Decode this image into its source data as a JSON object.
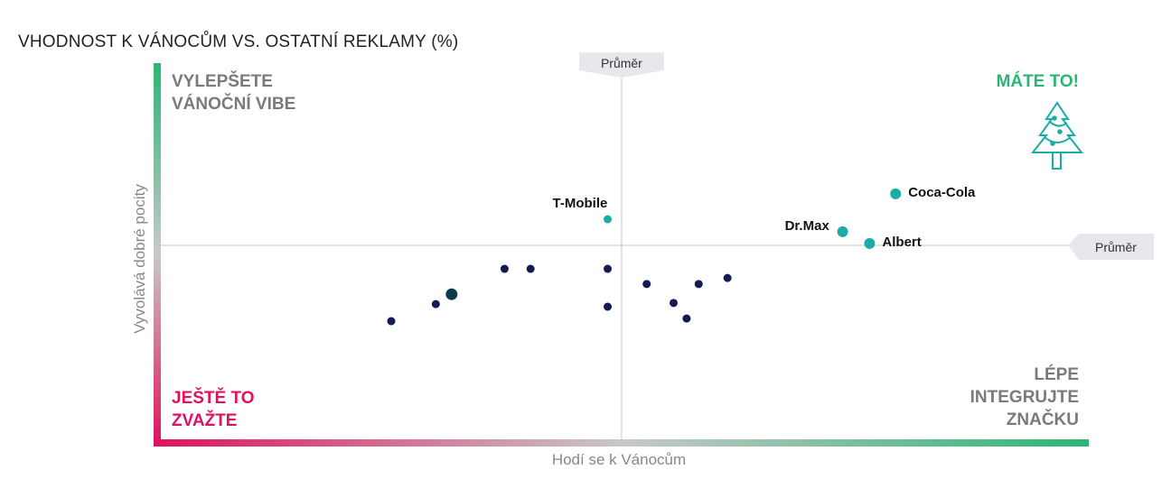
{
  "chart_data": {
    "type": "scatter",
    "title": "VHODNOST K VÁNOCŮM VS. OSTATNÍ REKLAMY (%)",
    "xlabel": "Hodí se k Vánocům",
    "ylabel": "Vyvolává dobré pocity",
    "xlim": [
      0,
      100
    ],
    "ylim": [
      0,
      100
    ],
    "average": {
      "label": "Průměr",
      "x": 49.8,
      "y": 51.9
    },
    "quadrants": {
      "top_left": [
        "VYLEPŠETE",
        "VÁNOČNÍ VIBE"
      ],
      "top_right": [
        "MÁTE TO!"
      ],
      "bottom_left": [
        "JEŠTĚ TO",
        "ZVAŽTE"
      ],
      "bottom_right": [
        "LÉPE",
        "INTEGRUJTE",
        "ZNAČKU"
      ]
    },
    "colors": {
      "green": "#2bb673",
      "pink": "#e0115f",
      "teal": "#1aada8",
      "navy": "#141a52",
      "dark": "#0e3a4a",
      "gray": "#888888"
    },
    "labeled_points": [
      {
        "name": "T-Mobile",
        "x": 48.3,
        "y": 58.8,
        "size": "small"
      },
      {
        "name": "Coca-Cola",
        "x": 79.3,
        "y": 65.5,
        "size": "large"
      },
      {
        "name": "Dr.Max",
        "x": 73.6,
        "y": 55.5,
        "size": "large"
      },
      {
        "name": "Albert",
        "x": 76.5,
        "y": 52.4,
        "size": "large"
      }
    ],
    "other_points": [
      {
        "x": 25.0,
        "y": 31.9
      },
      {
        "x": 29.8,
        "y": 36.4
      },
      {
        "x": 31.5,
        "y": 39.0,
        "highlight": true
      },
      {
        "x": 37.2,
        "y": 45.7
      },
      {
        "x": 40.0,
        "y": 45.7
      },
      {
        "x": 48.3,
        "y": 45.7
      },
      {
        "x": 48.3,
        "y": 35.7
      },
      {
        "x": 52.5,
        "y": 41.7
      },
      {
        "x": 55.4,
        "y": 36.7
      },
      {
        "x": 56.8,
        "y": 32.6
      },
      {
        "x": 58.1,
        "y": 41.7
      },
      {
        "x": 61.2,
        "y": 43.3
      }
    ]
  }
}
